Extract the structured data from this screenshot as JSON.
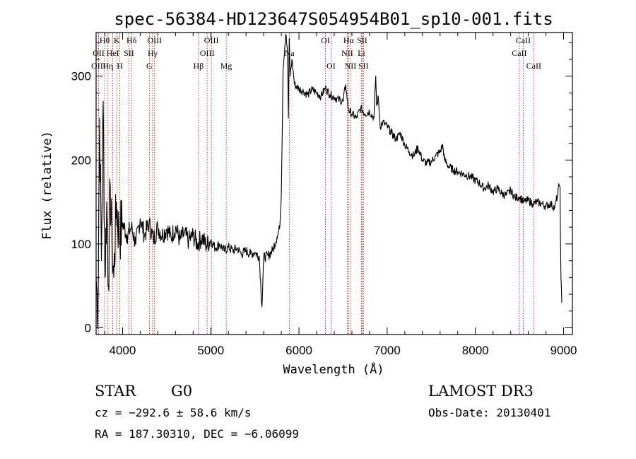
{
  "chart_data": {
    "type": "line",
    "title": "spec-56384-HD123647S054954B01_sp10-001.fits",
    "xlabel": "Wavelength (Å)",
    "ylabel": "Flux (relative)",
    "xlim": [
      3700,
      9100
    ],
    "ylim": [
      -8,
      352
    ],
    "x_ticks": [
      4000,
      5000,
      6000,
      7000,
      8000,
      9000
    ],
    "y_ticks": [
      0,
      100,
      200,
      300
    ],
    "series": [
      {
        "name": "flux",
        "x": [
          3700,
          3720,
          3740,
          3760,
          3780,
          3800,
          3820,
          3840,
          3860,
          3880,
          3900,
          3930,
          3960,
          4000,
          4050,
          4100,
          4150,
          4200,
          4250,
          4300,
          4350,
          4400,
          4450,
          4500,
          4550,
          4600,
          4650,
          4700,
          4750,
          4800,
          4850,
          4900,
          4950,
          5000,
          5050,
          5100,
          5150,
          5200,
          5250,
          5300,
          5350,
          5400,
          5450,
          5500,
          5550,
          5580,
          5600,
          5650,
          5700,
          5750,
          5780,
          5800,
          5820,
          5850,
          5870,
          5880,
          5890,
          5900,
          5920,
          5950,
          6000,
          6050,
          6100,
          6150,
          6200,
          6250,
          6300,
          6350,
          6400,
          6450,
          6500,
          6530,
          6560,
          6600,
          6650,
          6700,
          6750,
          6800,
          6850,
          6870,
          6880,
          6900,
          6920,
          6950,
          7000,
          7050,
          7100,
          7150,
          7200,
          7250,
          7300,
          7350,
          7400,
          7450,
          7500,
          7550,
          7600,
          7630,
          7650,
          7700,
          7750,
          7800,
          7850,
          7900,
          7950,
          8000,
          8050,
          8100,
          8150,
          8200,
          8250,
          8300,
          8350,
          8400,
          8450,
          8500,
          8550,
          8600,
          8650,
          8700,
          8750,
          8800,
          8850,
          8900,
          8930,
          8950,
          8960,
          8970,
          8980
        ],
        "y": [
          60,
          20,
          250,
          80,
          270,
          60,
          150,
          50,
          170,
          100,
          60,
          150,
          110,
          125,
          110,
          120,
          100,
          130,
          110,
          125,
          105,
          120,
          110,
          118,
          108,
          120,
          105,
          112,
          104,
          110,
          100,
          108,
          98,
          105,
          95,
          100,
          92,
          96,
          92,
          95,
          88,
          92,
          88,
          90,
          85,
          25,
          84,
          86,
          92,
          108,
          118,
          160,
          310,
          350,
          330,
          250,
          345,
          300,
          320,
          290,
          285,
          282,
          278,
          284,
          280,
          276,
          286,
          278,
          275,
          272,
          270,
          290,
          260,
          255,
          250,
          262,
          255,
          258,
          250,
          300,
          265,
          275,
          240,
          245,
          240,
          232,
          225,
          232,
          218,
          210,
          205,
          215,
          200,
          196,
          198,
          205,
          210,
          218,
          200,
          192,
          188,
          186,
          184,
          182,
          180,
          176,
          172,
          166,
          170,
          162,
          166,
          160,
          158,
          164,
          155,
          156,
          150,
          152,
          148,
          150,
          148,
          145,
          148,
          143,
          158,
          170,
          168,
          60,
          30
        ]
      }
    ],
    "spectral_lines": [
      {
        "label": "Hθ",
        "wavelength": 3797,
        "row": 0
      },
      {
        "label": "OII",
        "wavelength": 3727,
        "row": 1
      },
      {
        "label": "OIII",
        "wavelength": 3727,
        "row": 2
      },
      {
        "label": "Hη",
        "wavelength": 3835,
        "row": 2
      },
      {
        "label": "HeI",
        "wavelength": 3889,
        "row": 1
      },
      {
        "label": "K",
        "wavelength": 3934,
        "row": 0
      },
      {
        "label": "SII",
        "wavelength": 4072,
        "row": 1
      },
      {
        "label": "H",
        "wavelength": 3969,
        "row": 2
      },
      {
        "label": "Hδ",
        "wavelength": 4102,
        "row": 0
      },
      {
        "label": "OIII",
        "wavelength": 4363,
        "row": 0
      },
      {
        "label": "Hγ",
        "wavelength": 4341,
        "row": 1
      },
      {
        "label": "G",
        "wavelength": 4304,
        "row": 2
      },
      {
        "label": "OIII",
        "wavelength": 5007,
        "row": 0
      },
      {
        "label": "OIII",
        "wavelength": 4959,
        "row": 1
      },
      {
        "label": "Hβ",
        "wavelength": 4861,
        "row": 2
      },
      {
        "label": "Mg",
        "wavelength": 5175,
        "row": 2
      },
      {
        "label": "Na",
        "wavelength": 5893,
        "row": 1
      },
      {
        "label": "OI",
        "wavelength": 6300,
        "row": 0
      },
      {
        "label": "OI",
        "wavelength": 6363,
        "row": 2
      },
      {
        "label": "Hα",
        "wavelength": 6563,
        "row": 0
      },
      {
        "label": "SII",
        "wavelength": 6716,
        "row": 0
      },
      {
        "label": "NII",
        "wavelength": 6548,
        "row": 1
      },
      {
        "label": "Li",
        "wavelength": 6708,
        "row": 1
      },
      {
        "label": "NII",
        "wavelength": 6584,
        "row": 2
      },
      {
        "label": "SII",
        "wavelength": 6731,
        "row": 2
      },
      {
        "label": "CaII",
        "wavelength": 8542,
        "row": 0
      },
      {
        "label": "CaII",
        "wavelength": 8498,
        "row": 1
      },
      {
        "label": "CaII",
        "wavelength": 8662,
        "row": 2
      }
    ]
  },
  "info": {
    "object_class": "STAR",
    "subclass": "G0",
    "survey": "LAMOST DR3",
    "redshift": "cz = −292.6 ± 58.6 km/s",
    "obs_date": "Obs-Date: 20130401",
    "coords": "RA = 187.30310, DEC =  −6.06099"
  },
  "colors": {
    "spectrum": "#000000",
    "line_markers": "#c00000",
    "axes": "#000000"
  }
}
